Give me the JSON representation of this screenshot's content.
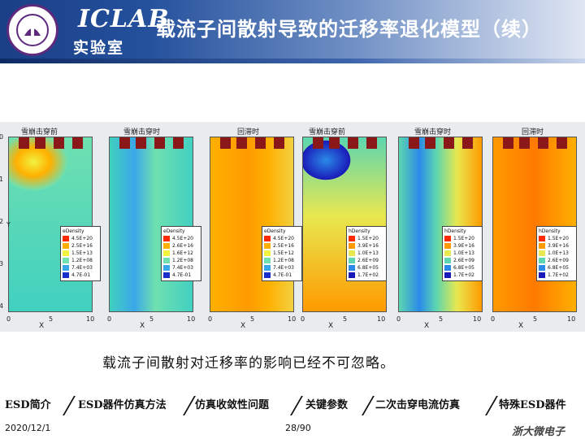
{
  "header": {
    "lab_name": "ICLAB",
    "lab_sub": "实验室",
    "title": "载流子间散射导致的迁移率退化模型（续）"
  },
  "panels": [
    {
      "title": "雪崩击穿前",
      "legend_title": "eDensity",
      "legend": [
        "4.5E+20",
        "2.5E+16",
        "1.5E+13",
        "1.2E+08",
        "7.4E+03",
        "4.7E-01"
      ]
    },
    {
      "title": "雪崩击穿时",
      "legend_title": "eDensity",
      "legend": [
        "4.5E+20",
        "2.6E+16",
        "1.6E+12",
        "1.2E+08",
        "7.4E+03",
        "4.7E-01"
      ]
    },
    {
      "title": "回滞时",
      "legend_title": "eDensity",
      "legend": [
        "4.5E+20",
        "2.5E+16",
        "1.5E+12",
        "1.2E+08",
        "7.4E+03",
        "4.7E-01"
      ]
    },
    {
      "title": "雪崩击穿前",
      "legend_title": "hDensity",
      "legend": [
        "1.5E+20",
        "3.9E+16",
        "1.0E+13",
        "2.6E+09",
        "6.8E+05",
        "1.7E+02"
      ]
    },
    {
      "title": "雪崩击穿时",
      "legend_title": "hDensity",
      "legend": [
        "1.5E+20",
        "3.9E+16",
        "1.0E+13",
        "2.6E+09",
        "6.8E+05",
        "1.7E+02"
      ]
    },
    {
      "title": "回滞时",
      "legend_title": "hDensity",
      "legend": [
        "1.5E+20",
        "3.9E+16",
        "1.0E+13",
        "2.6E+09",
        "6.8E+05",
        "1.7E+02"
      ]
    }
  ],
  "axis": {
    "x_name": "X",
    "y_name": "Y",
    "x_ticks": [
      "0",
      "5",
      "10"
    ],
    "y_ticks": [
      "0",
      "1",
      "2",
      "3",
      "4"
    ]
  },
  "caption": "载流子间散射对迁移率的影响已经不可忽略。",
  "nav": {
    "items": [
      "ESD简介",
      "ESD器件仿真方法",
      "仿真收敛性问题",
      "关键参数",
      "二次击穿电流仿真",
      "特殊ESD器件"
    ]
  },
  "footer": {
    "date": "2020/12/1",
    "page": "28/90",
    "logo": "浙大微电子"
  },
  "colors": {
    "e_legend": [
      "#ff2a00",
      "#ffb000",
      "#f2f240",
      "#6fe0b0",
      "#3aa8e8",
      "#1a2ecc"
    ],
    "h_legend": [
      "#ff2a00",
      "#ff9a00",
      "#e8e850",
      "#5cd6b0",
      "#2a8ae8",
      "#1a1ab8"
    ]
  }
}
